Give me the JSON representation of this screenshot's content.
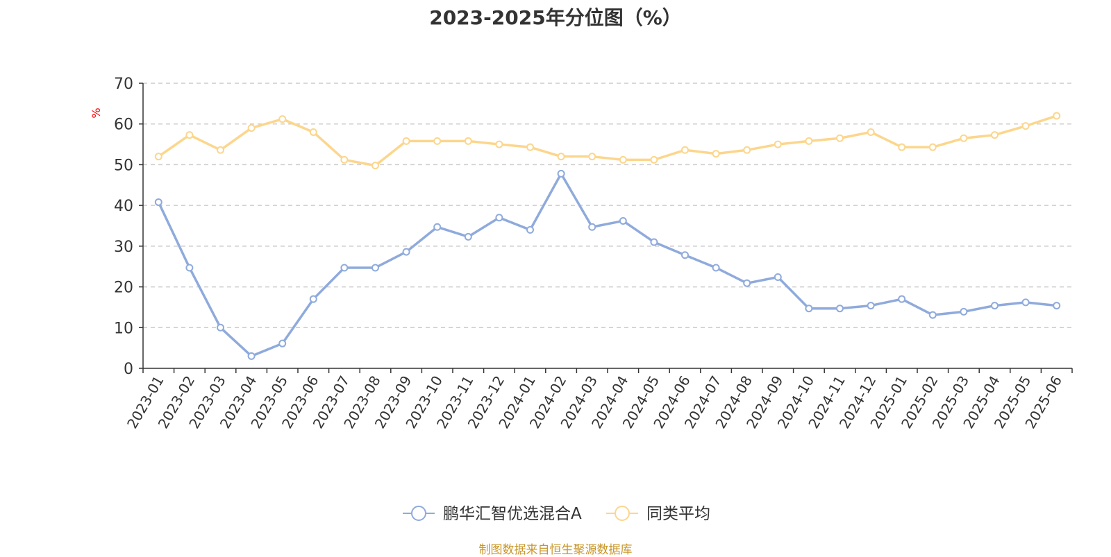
{
  "chart_data": {
    "type": "line",
    "title": "2023-2025年分位图（%）",
    "ylabel": "%",
    "ylim": [
      0,
      70
    ],
    "yticks": [
      0,
      10,
      20,
      30,
      40,
      50,
      60,
      70
    ],
    "grid": true,
    "legend_position": "bottom-center",
    "categories": [
      "2023-01",
      "2023-02",
      "2023-03",
      "2023-04",
      "2023-05",
      "2023-06",
      "2023-07",
      "2023-08",
      "2023-09",
      "2023-10",
      "2023-11",
      "2023-12",
      "2024-01",
      "2024-02",
      "2024-03",
      "2024-04",
      "2024-05",
      "2024-06",
      "2024-07",
      "2024-08",
      "2024-09",
      "2024-10",
      "2024-11",
      "2024-12",
      "2025-01",
      "2025-02",
      "2025-03",
      "2025-04",
      "2025-05",
      "2025-06"
    ],
    "series": [
      {
        "name": "鹏华汇智优选混合A",
        "color": "#8faadc",
        "values": [
          40.8,
          24.7,
          10.0,
          3.0,
          6.1,
          17.0,
          24.7,
          24.7,
          28.6,
          34.7,
          32.3,
          37.0,
          34.0,
          47.8,
          34.7,
          36.2,
          31.0,
          27.8,
          24.7,
          20.9,
          22.4,
          14.7,
          14.7,
          15.4,
          17.0,
          13.1,
          13.9,
          15.4,
          16.2,
          15.4
        ]
      },
      {
        "name": "同类平均",
        "color": "#fcd68c",
        "values": [
          52.0,
          57.3,
          53.6,
          59.0,
          61.2,
          58.0,
          51.2,
          49.8,
          55.8,
          55.8,
          55.8,
          55.0,
          54.3,
          52.0,
          52.0,
          51.2,
          51.2,
          53.6,
          52.7,
          53.6,
          55.0,
          55.8,
          56.5,
          58.0,
          54.3,
          54.3,
          56.5,
          57.3,
          59.5,
          62.0
        ]
      }
    ]
  },
  "source_note": "制图数据来自恒生聚源数据库",
  "colors": {
    "axis": "#333333",
    "grid": "#cccccc",
    "ylabel": "#ff0000",
    "source": "#c8962a"
  }
}
